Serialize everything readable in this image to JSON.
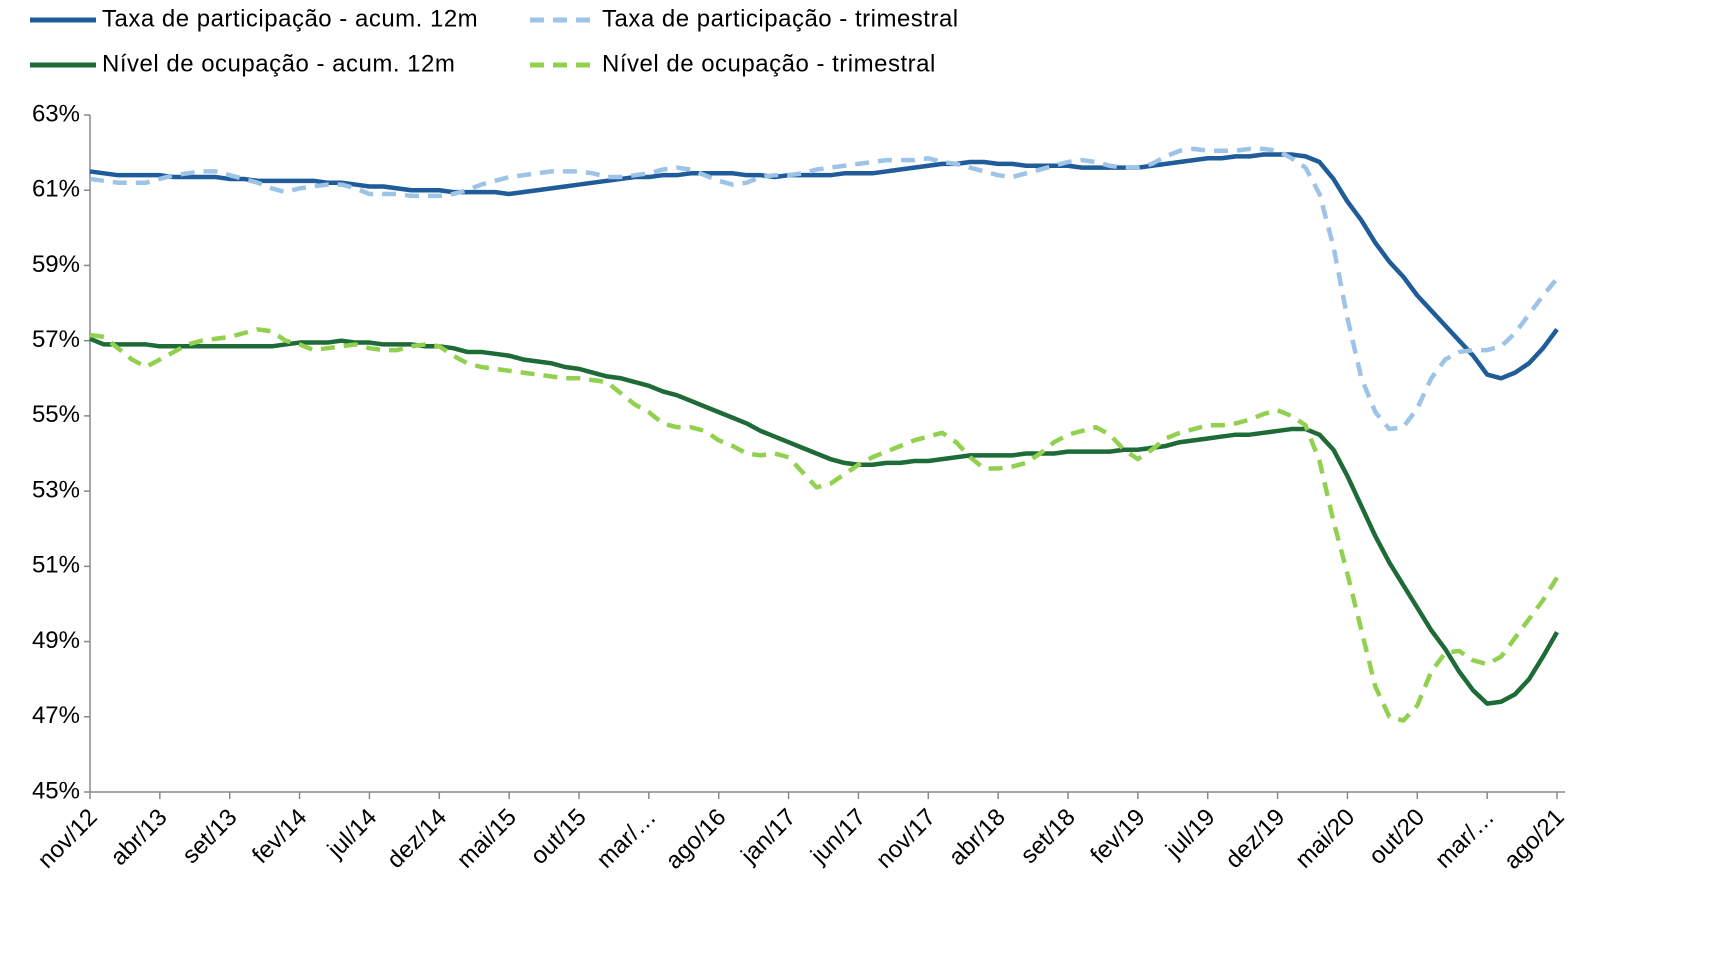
{
  "chart_data": {
    "type": "line",
    "categories": [
      "nov/12",
      null,
      null,
      null,
      null,
      "abr/13",
      null,
      null,
      null,
      null,
      "set/13",
      null,
      null,
      null,
      null,
      "fev/14",
      null,
      null,
      null,
      null,
      "jul/14",
      null,
      null,
      null,
      null,
      "dez/14",
      null,
      null,
      null,
      null,
      "mai/15",
      null,
      null,
      null,
      null,
      "out/15",
      null,
      null,
      null,
      null,
      "mar/…",
      null,
      null,
      null,
      null,
      "ago/16",
      null,
      null,
      null,
      null,
      "jan/17",
      null,
      null,
      null,
      null,
      "jun/17",
      null,
      null,
      null,
      null,
      "nov/17",
      null,
      null,
      null,
      null,
      "abr/18",
      null,
      null,
      null,
      null,
      "set/18",
      null,
      null,
      null,
      null,
      "fev/19",
      null,
      null,
      null,
      null,
      "jul/19",
      null,
      null,
      null,
      null,
      "dez/19",
      null,
      null,
      null,
      null,
      "mai/20",
      null,
      null,
      null,
      null,
      "out/20",
      null,
      null,
      null,
      null,
      "mar/…",
      null,
      null,
      null,
      null,
      "ago/21"
    ],
    "series": [
      {
        "name": "Taxa de participação - acum. 12m",
        "color": "#1f5c99",
        "dashed": false,
        "values": [
          61.5,
          61.45,
          61.4,
          61.4,
          61.4,
          61.4,
          61.35,
          61.35,
          61.35,
          61.35,
          61.3,
          61.3,
          61.25,
          61.25,
          61.25,
          61.25,
          61.25,
          61.2,
          61.2,
          61.15,
          61.1,
          61.1,
          61.05,
          61.0,
          61.0,
          61.0,
          60.95,
          60.95,
          60.95,
          60.95,
          60.9,
          60.95,
          61.0,
          61.05,
          61.1,
          61.15,
          61.2,
          61.25,
          61.3,
          61.35,
          61.35,
          61.4,
          61.4,
          61.45,
          61.45,
          61.45,
          61.45,
          61.4,
          61.4,
          61.35,
          61.4,
          61.4,
          61.4,
          61.4,
          61.45,
          61.45,
          61.45,
          61.5,
          61.55,
          61.6,
          61.65,
          61.7,
          61.7,
          61.75,
          61.75,
          61.7,
          61.7,
          61.65,
          61.65,
          61.65,
          61.65,
          61.6,
          61.6,
          61.6,
          61.6,
          61.6,
          61.65,
          61.7,
          61.75,
          61.8,
          61.85,
          61.85,
          61.9,
          61.9,
          61.95,
          61.95,
          61.95,
          61.9,
          61.75,
          61.3,
          60.7,
          60.2,
          59.6,
          59.1,
          58.7,
          58.2,
          57.8,
          57.4,
          57.0,
          56.6,
          56.1,
          56.0,
          56.15,
          56.4,
          56.8,
          57.3
        ]
      },
      {
        "name": "Taxa de participação - trimestral",
        "color": "#9dc3e6",
        "dashed": true,
        "values": [
          61.3,
          61.25,
          61.2,
          61.2,
          61.2,
          61.3,
          61.4,
          61.45,
          61.5,
          61.5,
          61.4,
          61.3,
          61.2,
          61.05,
          60.95,
          61.05,
          61.1,
          61.15,
          61.15,
          61.05,
          60.9,
          60.9,
          60.9,
          60.85,
          60.85,
          60.85,
          60.9,
          61.0,
          61.15,
          61.25,
          61.35,
          61.4,
          61.45,
          61.5,
          61.5,
          61.5,
          61.45,
          61.35,
          61.35,
          61.4,
          61.45,
          61.55,
          61.6,
          61.55,
          61.4,
          61.25,
          61.15,
          61.2,
          61.35,
          61.4,
          61.4,
          61.45,
          61.55,
          61.6,
          61.65,
          61.7,
          61.75,
          61.8,
          61.8,
          61.8,
          61.85,
          61.75,
          61.7,
          61.6,
          61.5,
          61.4,
          61.35,
          61.45,
          61.55,
          61.65,
          61.75,
          61.8,
          61.75,
          61.65,
          61.6,
          61.6,
          61.7,
          61.9,
          62.05,
          62.1,
          62.05,
          62.05,
          62.05,
          62.1,
          62.1,
          62.05,
          61.85,
          61.6,
          60.9,
          59.5,
          57.6,
          56.0,
          55.1,
          54.65,
          54.7,
          55.2,
          56.0,
          56.5,
          56.7,
          56.75,
          56.75,
          56.85,
          57.2,
          57.7,
          58.2,
          58.65
        ]
      },
      {
        "name": "Nível de ocupação - acum. 12m",
        "color": "#1e6b38",
        "dashed": false,
        "values": [
          57.05,
          56.9,
          56.9,
          56.9,
          56.9,
          56.85,
          56.85,
          56.85,
          56.85,
          56.85,
          56.85,
          56.85,
          56.85,
          56.85,
          56.9,
          56.95,
          56.95,
          56.95,
          57.0,
          56.95,
          56.95,
          56.9,
          56.9,
          56.9,
          56.85,
          56.85,
          56.8,
          56.7,
          56.7,
          56.65,
          56.6,
          56.5,
          56.45,
          56.4,
          56.3,
          56.25,
          56.15,
          56.05,
          56.0,
          55.9,
          55.8,
          55.65,
          55.55,
          55.4,
          55.25,
          55.1,
          54.95,
          54.8,
          54.6,
          54.45,
          54.3,
          54.15,
          54.0,
          53.85,
          53.75,
          53.7,
          53.7,
          53.75,
          53.75,
          53.8,
          53.8,
          53.85,
          53.9,
          53.95,
          53.95,
          53.95,
          53.95,
          54.0,
          54.0,
          54.0,
          54.05,
          54.05,
          54.05,
          54.05,
          54.1,
          54.1,
          54.15,
          54.2,
          54.3,
          54.35,
          54.4,
          54.45,
          54.5,
          54.5,
          54.55,
          54.6,
          54.65,
          54.65,
          54.5,
          54.1,
          53.4,
          52.6,
          51.8,
          51.1,
          50.5,
          49.9,
          49.3,
          48.8,
          48.2,
          47.7,
          47.35,
          47.4,
          47.6,
          48.0,
          48.6,
          49.25
        ]
      },
      {
        "name": "Nível de ocupação - trimestral",
        "color": "#92d050",
        "dashed": true,
        "values": [
          57.15,
          57.1,
          56.8,
          56.5,
          56.3,
          56.5,
          56.7,
          56.9,
          57.0,
          57.05,
          57.1,
          57.2,
          57.3,
          57.25,
          57.0,
          56.9,
          56.75,
          56.8,
          56.85,
          56.9,
          56.8,
          56.75,
          56.75,
          56.85,
          56.9,
          56.85,
          56.6,
          56.4,
          56.3,
          56.25,
          56.2,
          56.15,
          56.1,
          56.05,
          56.0,
          56.0,
          55.95,
          55.9,
          55.6,
          55.3,
          55.1,
          54.8,
          54.7,
          54.7,
          54.6,
          54.35,
          54.2,
          54.0,
          53.95,
          54.0,
          53.9,
          53.5,
          53.1,
          53.2,
          53.45,
          53.7,
          53.9,
          54.05,
          54.2,
          54.35,
          54.45,
          54.55,
          54.3,
          53.9,
          53.6,
          53.6,
          53.65,
          53.75,
          54.0,
          54.3,
          54.5,
          54.6,
          54.7,
          54.5,
          54.1,
          53.85,
          54.1,
          54.4,
          54.55,
          54.65,
          54.75,
          54.75,
          54.8,
          54.9,
          55.05,
          55.15,
          55.0,
          54.75,
          53.8,
          52.2,
          50.8,
          49.3,
          47.8,
          47.0,
          46.9,
          47.3,
          48.2,
          48.7,
          48.75,
          48.5,
          48.4,
          48.6,
          49.1,
          49.6,
          50.1,
          50.7
        ]
      }
    ],
    "ylim": [
      45,
      63
    ],
    "yticks": [
      {
        "value": 45,
        "label": "45%"
      },
      {
        "value": 47,
        "label": "47%"
      },
      {
        "value": 49,
        "label": "49%"
      },
      {
        "value": 51,
        "label": "51%"
      },
      {
        "value": 53,
        "label": "53%"
      },
      {
        "value": 55,
        "label": "55%"
      },
      {
        "value": 57,
        "label": "57%"
      },
      {
        "value": 59,
        "label": "59%"
      },
      {
        "value": 61,
        "label": "61%"
      },
      {
        "value": 63,
        "label": "63%"
      }
    ],
    "grid": false
  }
}
